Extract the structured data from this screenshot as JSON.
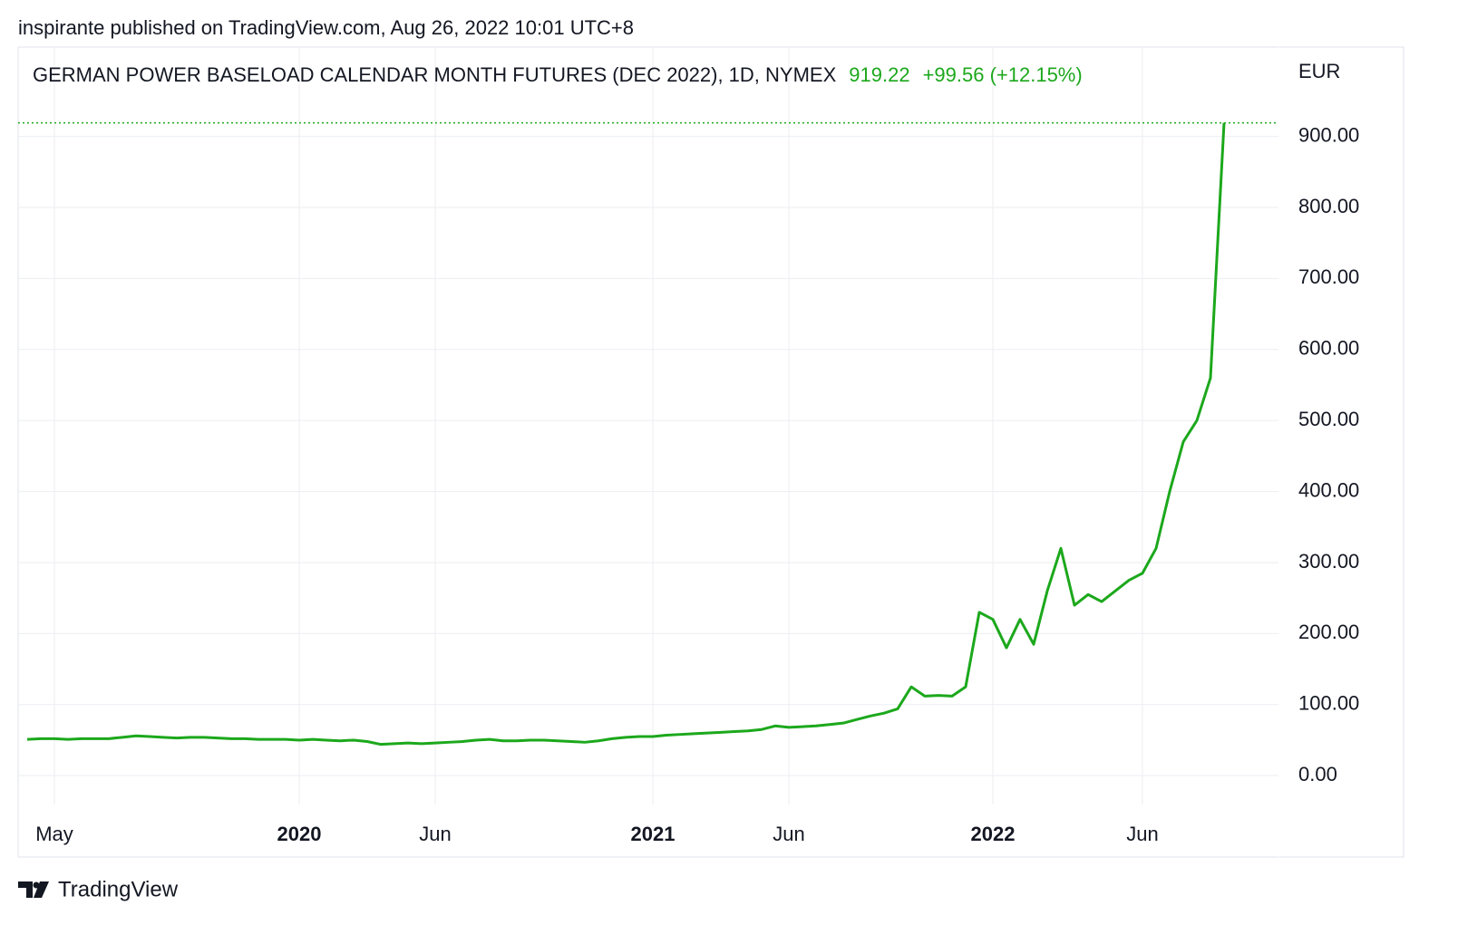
{
  "header": "inspirante published on TradingView.com, Aug 26, 2022 10:01 UTC+8",
  "brand": "TradingView",
  "chart_data": {
    "type": "line",
    "title": "GERMAN POWER BASELOAD CALENDAR MONTH FUTURES (DEC 2022), 1D, NYMEX",
    "change": "+99.56 (+12.15%)",
    "y_axis_label": "EUR",
    "categories": [
      null,
      null,
      "May",
      null,
      null,
      null,
      null,
      null,
      null,
      null,
      null,
      null,
      null,
      null,
      null,
      null,
      null,
      null,
      null,
      null,
      "2020",
      null,
      null,
      null,
      null,
      null,
      null,
      null,
      null,
      null,
      "Jun",
      null,
      null,
      null,
      null,
      null,
      null,
      null,
      null,
      null,
      null,
      null,
      null,
      null,
      null,
      null,
      "2021",
      null,
      null,
      null,
      null,
      null,
      null,
      null,
      null,
      null,
      "Jun",
      null,
      null,
      null,
      null,
      null,
      null,
      null,
      null,
      null,
      null,
      null,
      null,
      null,
      null,
      "2022",
      null,
      null,
      null,
      null,
      null,
      null,
      null,
      null,
      null,
      null,
      "Jun",
      null,
      null,
      null,
      null,
      null,
      null
    ],
    "bold_categories": [
      "2020",
      "2021",
      "2022"
    ],
    "series": [
      {
        "name": "DEC 2022",
        "color": "#1ca81c",
        "values": [
          51,
          52,
          52,
          51,
          52,
          52,
          52,
          54,
          56,
          55,
          54,
          53,
          54,
          54,
          53,
          52,
          52,
          51,
          51,
          51,
          50,
          51,
          50,
          49,
          50,
          48,
          44,
          45,
          46,
          45,
          46,
          47,
          48,
          50,
          51,
          49,
          49,
          50,
          50,
          49,
          48,
          47,
          49,
          52,
          54,
          55,
          55,
          57,
          58,
          59,
          60,
          61,
          62,
          63,
          65,
          70,
          68,
          69,
          70,
          72,
          74,
          79,
          84,
          88,
          94,
          125,
          112,
          113,
          112,
          125,
          230,
          220,
          180,
          220,
          185,
          260,
          320,
          240,
          255,
          245,
          260,
          275,
          285,
          320,
          400,
          470,
          500,
          560,
          919.22
        ]
      }
    ],
    "ylim": [
      -47,
      1022
    ],
    "yticks": [
      {
        "value": 0,
        "label": "0.00"
      },
      {
        "value": 100,
        "label": "100.00"
      },
      {
        "value": 200,
        "label": "200.00"
      },
      {
        "value": 300,
        "label": "300.00"
      },
      {
        "value": 400,
        "label": "400.00"
      },
      {
        "value": 500,
        "label": "500.00"
      },
      {
        "value": 600,
        "label": "600.00"
      },
      {
        "value": 700,
        "label": "700.00"
      },
      {
        "value": 800,
        "label": "800.00"
      },
      {
        "value": 900,
        "label": "900.00"
      }
    ],
    "grid": true
  }
}
